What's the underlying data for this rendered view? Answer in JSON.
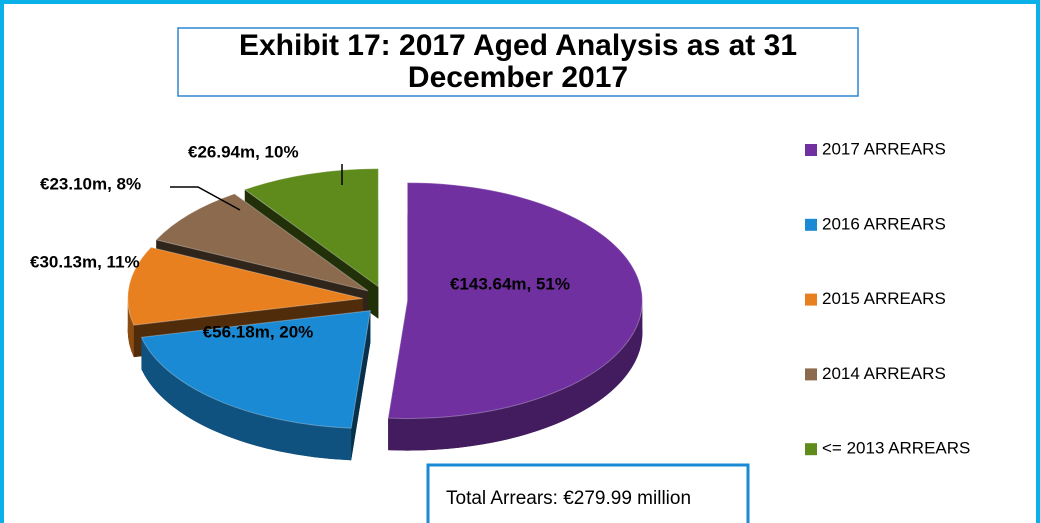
{
  "chart_data": {
    "type": "pie",
    "title": "Exhibit 17: 2017 Aged Analysis as at 31 December 2017",
    "categories": [
      "2017 ARREARS",
      "2016 ARREARS",
      "2015 ARREARS",
      "2014 ARREARS",
      "<= 2013 ARREARS"
    ],
    "values": [
      143.64,
      56.18,
      30.13,
      23.1,
      26.94
    ],
    "value_labels": [
      "€143.64m, 51%",
      "€56.18m, 20%",
      "€30.13m, 11%",
      "€23.10m, 8%",
      "€26.94m, 10%"
    ],
    "colors": [
      "#7030a0",
      "#1a8ad4",
      "#e8801f",
      "#8b6a4d",
      "#5f8a1c"
    ],
    "legend": "right",
    "annotation": "Total Arrears: €279.99 million"
  }
}
